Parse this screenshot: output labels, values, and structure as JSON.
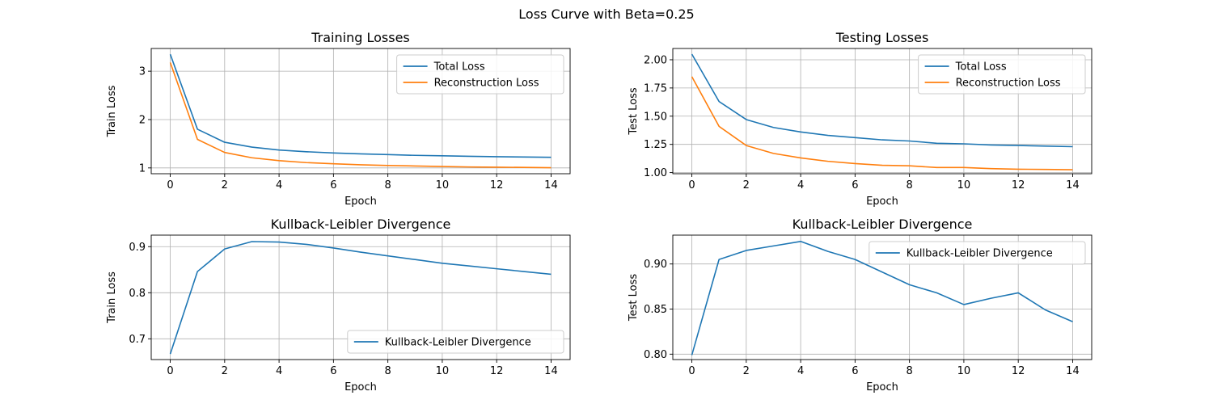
{
  "figure": {
    "suptitle": "Loss Curve with Beta=0.25"
  },
  "colors": {
    "series1": "#1f77b4",
    "series2": "#ff7f0e",
    "grid": "#b0b0b0"
  },
  "chart_data": [
    {
      "type": "line",
      "title": "Training Losses",
      "xlabel": "Epoch",
      "ylabel": "Train Loss",
      "xlim": [
        -0.7,
        14.7
      ],
      "ylim": [
        0.88,
        3.47
      ],
      "xticks": [
        0,
        2,
        4,
        6,
        8,
        10,
        12,
        14
      ],
      "yticks": [
        1,
        2,
        3
      ],
      "ytick_labels": [
        "1",
        "2",
        "3"
      ],
      "grid": true,
      "legend": "top-right",
      "x": [
        0,
        1,
        2,
        3,
        4,
        5,
        6,
        7,
        8,
        9,
        10,
        11,
        12,
        13,
        14
      ],
      "series": [
        {
          "name": "Total Loss",
          "color": "#1f77b4",
          "values": [
            3.35,
            1.8,
            1.53,
            1.43,
            1.37,
            1.335,
            1.31,
            1.29,
            1.275,
            1.26,
            1.25,
            1.24,
            1.232,
            1.225,
            1.22
          ]
        },
        {
          "name": "Reconstruction Loss",
          "color": "#ff7f0e",
          "values": [
            3.18,
            1.59,
            1.32,
            1.21,
            1.15,
            1.11,
            1.085,
            1.065,
            1.05,
            1.04,
            1.03,
            1.02,
            1.015,
            1.01,
            1.005
          ]
        }
      ]
    },
    {
      "type": "line",
      "title": "Testing Losses",
      "xlabel": "Epoch",
      "ylabel": "Test Loss",
      "xlim": [
        -0.7,
        14.7
      ],
      "ylim": [
        0.99,
        2.1
      ],
      "xticks": [
        0,
        2,
        4,
        6,
        8,
        10,
        12,
        14
      ],
      "yticks": [
        1.0,
        1.25,
        1.5,
        1.75,
        2.0
      ],
      "ytick_labels": [
        "1.00",
        "1.25",
        "1.50",
        "1.75",
        "2.00"
      ],
      "grid": true,
      "legend": "top-right",
      "x": [
        0,
        1,
        2,
        3,
        4,
        5,
        6,
        7,
        8,
        9,
        10,
        11,
        12,
        13,
        14
      ],
      "series": [
        {
          "name": "Total Loss",
          "color": "#1f77b4",
          "values": [
            2.05,
            1.63,
            1.47,
            1.4,
            1.36,
            1.33,
            1.31,
            1.29,
            1.28,
            1.26,
            1.255,
            1.245,
            1.24,
            1.235,
            1.23
          ]
        },
        {
          "name": "Reconstruction Loss",
          "color": "#ff7f0e",
          "values": [
            1.85,
            1.41,
            1.24,
            1.17,
            1.13,
            1.1,
            1.08,
            1.065,
            1.06,
            1.045,
            1.045,
            1.035,
            1.03,
            1.028,
            1.025
          ]
        }
      ]
    },
    {
      "type": "line",
      "title": "Kullback-Leibler Divergence",
      "xlabel": "Epoch",
      "ylabel": "Train Loss",
      "xlim": [
        -0.7,
        14.7
      ],
      "ylim": [
        0.655,
        0.925
      ],
      "xticks": [
        0,
        2,
        4,
        6,
        8,
        10,
        12,
        14
      ],
      "yticks": [
        0.7,
        0.8,
        0.9
      ],
      "ytick_labels": [
        "0.7",
        "0.8",
        "0.9"
      ],
      "grid": true,
      "legend": "bottom-right",
      "x": [
        0,
        1,
        2,
        3,
        4,
        5,
        6,
        7,
        8,
        9,
        10,
        11,
        12,
        13,
        14
      ],
      "series": [
        {
          "name": "Kullback-Leibler Divergence",
          "color": "#1f77b4",
          "values": [
            0.667,
            0.846,
            0.895,
            0.911,
            0.91,
            0.905,
            0.897,
            0.888,
            0.88,
            0.872,
            0.864,
            0.858,
            0.852,
            0.846,
            0.84
          ]
        }
      ]
    },
    {
      "type": "line",
      "title": "Kullback-Leibler Divergence",
      "xlabel": "Epoch",
      "ylabel": "Test Loss",
      "xlim": [
        -0.7,
        14.7
      ],
      "ylim": [
        0.794,
        0.932
      ],
      "xticks": [
        0,
        2,
        4,
        6,
        8,
        10,
        12,
        14
      ],
      "yticks": [
        0.8,
        0.85,
        0.9
      ],
      "ytick_labels": [
        "0.80",
        "0.85",
        "0.90"
      ],
      "grid": true,
      "legend": "top-right",
      "x": [
        0,
        1,
        2,
        3,
        4,
        5,
        6,
        7,
        8,
        9,
        10,
        11,
        12,
        13,
        14
      ],
      "series": [
        {
          "name": "Kullback-Leibler Divergence",
          "color": "#1f77b4",
          "values": [
            0.799,
            0.905,
            0.915,
            0.92,
            0.925,
            0.914,
            0.905,
            0.891,
            0.877,
            0.868,
            0.855,
            0.862,
            0.868,
            0.849,
            0.836
          ]
        }
      ]
    }
  ]
}
